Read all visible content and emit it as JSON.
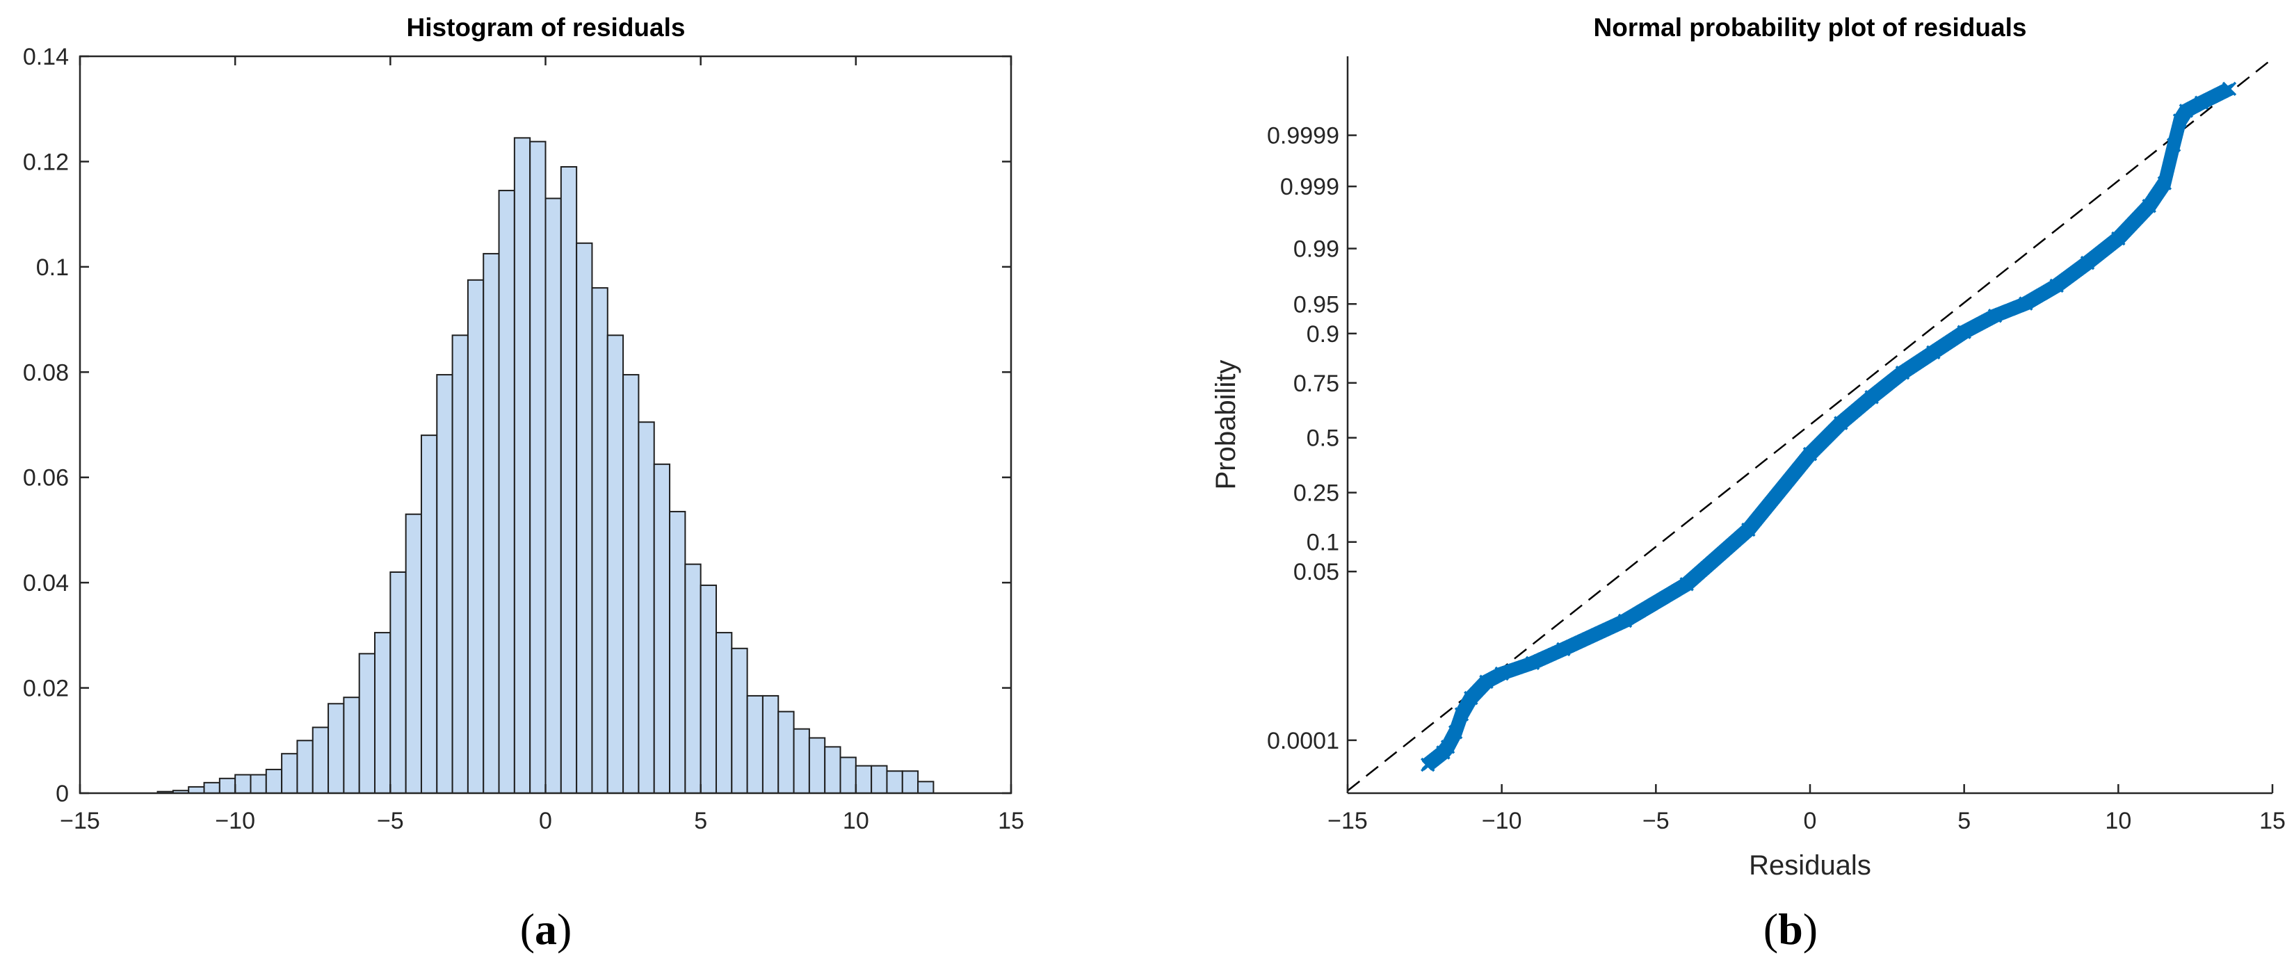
{
  "colors": {
    "hist_fill": "#c4daf2",
    "hist_edge": "#1f1f1f",
    "marker": "#0072bd",
    "axes": "#262626",
    "ref_line": "#000000"
  },
  "captions": {
    "a_open": "(",
    "a_letter": "a",
    "a_close": ")",
    "b_open": "(",
    "b_letter": "b",
    "b_close": ")"
  },
  "chart_data": [
    {
      "type": "bar",
      "title": "Histogram of residuals",
      "xlabel": "",
      "ylabel": "",
      "xlim": [
        -15,
        15
      ],
      "ylim": [
        0,
        0.14
      ],
      "xticks": [
        -15,
        -10,
        -5,
        0,
        5,
        10,
        15
      ],
      "xtick_labels": [
        "−15",
        "−10",
        "−5",
        "0",
        "5",
        "10",
        "15"
      ],
      "yticks": [
        0,
        0.02,
        0.04,
        0.06,
        0.08,
        0.1,
        0.12,
        0.14
      ],
      "ytick_labels": [
        "0",
        "0.02",
        "0.04",
        "0.06",
        "0.08",
        "0.1",
        "0.12",
        "0.14"
      ],
      "bin_start": -12.5,
      "bin_width": 0.5,
      "values": [
        0.0003,
        0.0005,
        0.0012,
        0.002,
        0.0028,
        0.0035,
        0.0035,
        0.0045,
        0.0075,
        0.01,
        0.0125,
        0.017,
        0.0182,
        0.0265,
        0.0305,
        0.042,
        0.053,
        0.068,
        0.0795,
        0.087,
        0.0975,
        0.1025,
        0.1145,
        0.1245,
        0.1238,
        0.113,
        0.119,
        0.1045,
        0.096,
        0.087,
        0.0795,
        0.0705,
        0.0625,
        0.0535,
        0.0435,
        0.0395,
        0.0305,
        0.0275,
        0.0185,
        0.0185,
        0.0155,
        0.0122,
        0.0105,
        0.0088,
        0.0068,
        0.0052,
        0.0052,
        0.0042,
        0.0042,
        0.0022
      ]
    },
    {
      "type": "scatter",
      "title": "Normal probability plot of residuals",
      "xlabel": "Residuals",
      "ylabel": "Probability",
      "xlim": [
        -15,
        15
      ],
      "xticks": [
        -15,
        -10,
        -5,
        0,
        5,
        10,
        15
      ],
      "xtick_labels": [
        "−15",
        "−10",
        "−5",
        "0",
        "5",
        "10",
        "15"
      ],
      "ytick_labels": [
        "0.0001",
        "0.05",
        "0.1",
        "0.25",
        "0.5",
        "0.75",
        "0.9",
        "0.95",
        "0.99",
        "0.999",
        "0.9999"
      ],
      "ytick_probabilities": [
        0.0001,
        0.05,
        0.1,
        0.25,
        0.5,
        0.75,
        0.9,
        0.95,
        0.99,
        0.999,
        0.9999
      ],
      "ylim_quantile": [
        -4.37,
        4.69
      ],
      "marker": "x",
      "reference_line": {
        "type": "dashed",
        "x": [
          -15,
          15
        ],
        "quantile": [
          -4.34,
          4.66
        ]
      },
      "points_sampled": [
        {
          "x": -12.4,
          "quantile": -4.02
        },
        {
          "x": -11.9,
          "quantile": -3.87
        },
        {
          "x": -11.75,
          "quantile": -3.8
        },
        {
          "x": -11.5,
          "quantile": -3.62
        },
        {
          "x": -11.3,
          "quantile": -3.4
        },
        {
          "x": -11.0,
          "quantile": -3.2
        },
        {
          "x": -10.5,
          "quantile": -3.0
        },
        {
          "x": -10.0,
          "quantile": -2.9
        },
        {
          "x": -9.0,
          "quantile": -2.77
        },
        {
          "x": -8.0,
          "quantile": -2.6
        },
        {
          "x": -6.0,
          "quantile": -2.25
        },
        {
          "x": -4.0,
          "quantile": -1.8
        },
        {
          "x": -2.0,
          "quantile": -1.13
        },
        {
          "x": 0.0,
          "quantile": -0.2
        },
        {
          "x": 1.0,
          "quantile": 0.18
        },
        {
          "x": 2.0,
          "quantile": 0.5
        },
        {
          "x": 3.0,
          "quantile": 0.8
        },
        {
          "x": 4.0,
          "quantile": 1.05
        },
        {
          "x": 5.0,
          "quantile": 1.3
        },
        {
          "x": 6.0,
          "quantile": 1.5
        },
        {
          "x": 7.0,
          "quantile": 1.65
        },
        {
          "x": 8.0,
          "quantile": 1.87
        },
        {
          "x": 9.0,
          "quantile": 2.15
        },
        {
          "x": 10.0,
          "quantile": 2.45
        },
        {
          "x": 11.0,
          "quantile": 2.85
        },
        {
          "x": 11.5,
          "quantile": 3.13
        },
        {
          "x": 11.8,
          "quantile": 3.6
        },
        {
          "x": 12.0,
          "quantile": 3.9
        },
        {
          "x": 12.2,
          "quantile": 4.02
        },
        {
          "x": 12.7,
          "quantile": 4.12
        },
        {
          "x": 13.6,
          "quantile": 4.29
        }
      ]
    }
  ]
}
